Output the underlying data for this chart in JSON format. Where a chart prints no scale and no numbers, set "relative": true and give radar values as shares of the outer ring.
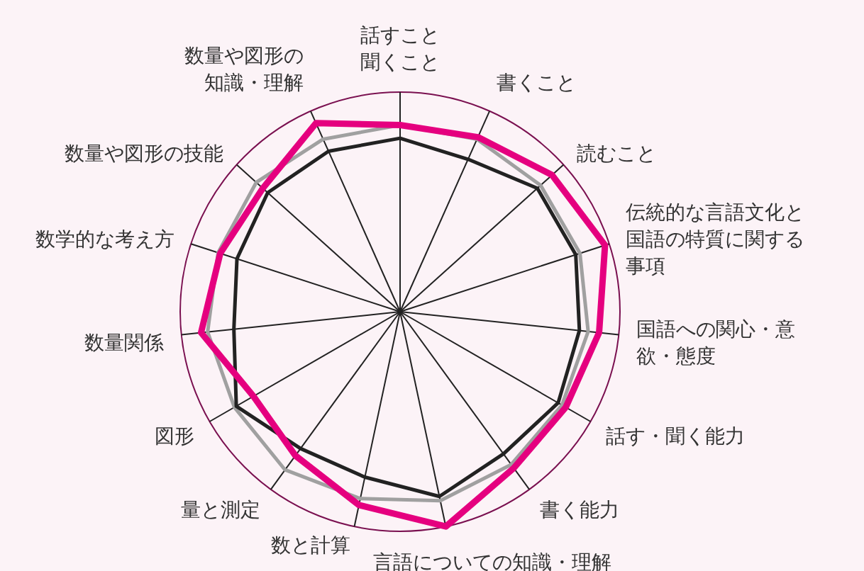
{
  "chart_data": {
    "type": "radar",
    "relative": true,
    "categories": [
      "話すこと聞くこと",
      "書くこと",
      "読むこと",
      "伝統的な言語文化と国語の特質に関する事項",
      "国語への関心・意欲・態度",
      "話す・聞く能力",
      "書く能力",
      "言語についての知識・理解",
      "数と計算",
      "量と測定",
      "図形",
      "数量関係",
      "数学的な考え方",
      "数量や図形の技能",
      "数量や図形の知識・理解"
    ],
    "series": [
      {
        "color": "#a0a0a0",
        "values": [
          0.85,
          0.86,
          0.86,
          0.86,
          0.86,
          0.85,
          0.86,
          0.88,
          0.87,
          0.89,
          0.87,
          0.88,
          0.87,
          0.88,
          0.86
        ]
      },
      {
        "color": "#222222",
        "values": [
          0.79,
          0.76,
          0.84,
          0.84,
          0.82,
          0.83,
          0.8,
          0.86,
          0.77,
          0.77,
          0.86,
          0.76,
          0.78,
          0.81,
          0.8
        ]
      },
      {
        "color": "#e5007f",
        "values": [
          0.85,
          0.87,
          0.93,
          0.98,
          0.91,
          0.87,
          0.88,
          1.0,
          0.9,
          0.81,
          0.77,
          0.91,
          0.86,
          0.84,
          0.94
        ]
      }
    ]
  }
}
